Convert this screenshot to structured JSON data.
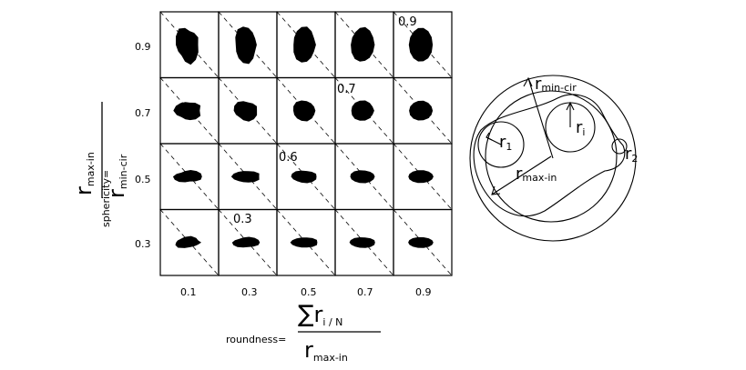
{
  "chart_data": {
    "type": "table",
    "title": "",
    "row_axis": {
      "label": "sphericity=",
      "formula_numerator_base": "r",
      "formula_numerator_sub": "max-in",
      "formula_denominator_base": "r",
      "formula_denominator_sub": "min-cir",
      "values": [
        "0.9",
        "0.7",
        "0.5",
        "0.3"
      ]
    },
    "col_axis": {
      "label": "roundness=",
      "formula_sum_sign": "∑",
      "formula_numerator_base": "r",
      "formula_numerator_sub": "i / N",
      "formula_denominator_base": "r",
      "formula_denominator_sub": "max-in",
      "values": [
        "0.1",
        "0.3",
        "0.5",
        "0.7",
        "0.9"
      ]
    },
    "diagonal_labels": [
      {
        "text": "0.9",
        "row": 0,
        "col": 4
      },
      {
        "text": "0.7",
        "row": 1,
        "col": 3
      },
      {
        "text": "0.6",
        "row": 2,
        "col": 2
      },
      {
        "text": "0.3",
        "row": 3,
        "col": 1
      }
    ]
  },
  "schematic": {
    "labels": {
      "r_min_cir_base": "r",
      "r_min_cir_sub": "min-cir",
      "r_i_base": "r",
      "r_i_sub": "i",
      "r_1_base": "r",
      "r_1_sub": "1",
      "r_2_base": "r",
      "r_2_sub": "2",
      "r_max_in_base": "r",
      "r_max_in_sub": "max-in"
    }
  }
}
